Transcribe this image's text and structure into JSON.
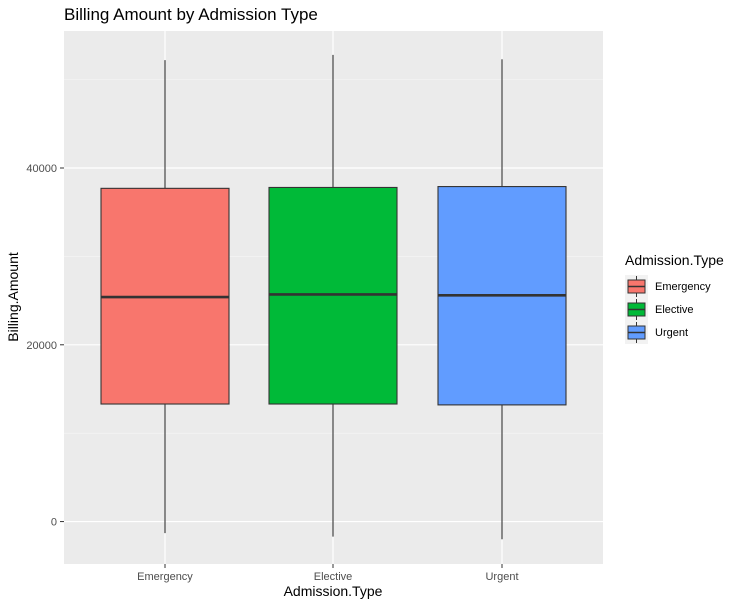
{
  "chart_data": {
    "type": "boxplot",
    "title": "Billing Amount by Admission Type",
    "xlabel": "Admission.Type",
    "ylabel": "Billing.Amount",
    "ylim": [
      -4800,
      55500
    ],
    "yticks": [
      0,
      20000,
      40000
    ],
    "ytick_labels": [
      "0",
      "20000",
      "40000"
    ],
    "grid": true,
    "legend": {
      "title": "Admission.Type",
      "position": "right"
    },
    "categories": [
      "Emergency",
      "Elective",
      "Urgent"
    ],
    "series": [
      {
        "name": "Emergency",
        "color": "#F8766D",
        "min": -1300,
        "q1": 13300,
        "median": 25400,
        "q3": 37700,
        "max": 52200
      },
      {
        "name": "Elective",
        "color": "#00BA38",
        "min": -1700,
        "q1": 13300,
        "median": 25700,
        "q3": 37800,
        "max": 52800
      },
      {
        "name": "Urgent",
        "color": "#619CFF",
        "min": -2000,
        "q1": 13200,
        "median": 25600,
        "q3": 37900,
        "max": 52300
      }
    ]
  }
}
